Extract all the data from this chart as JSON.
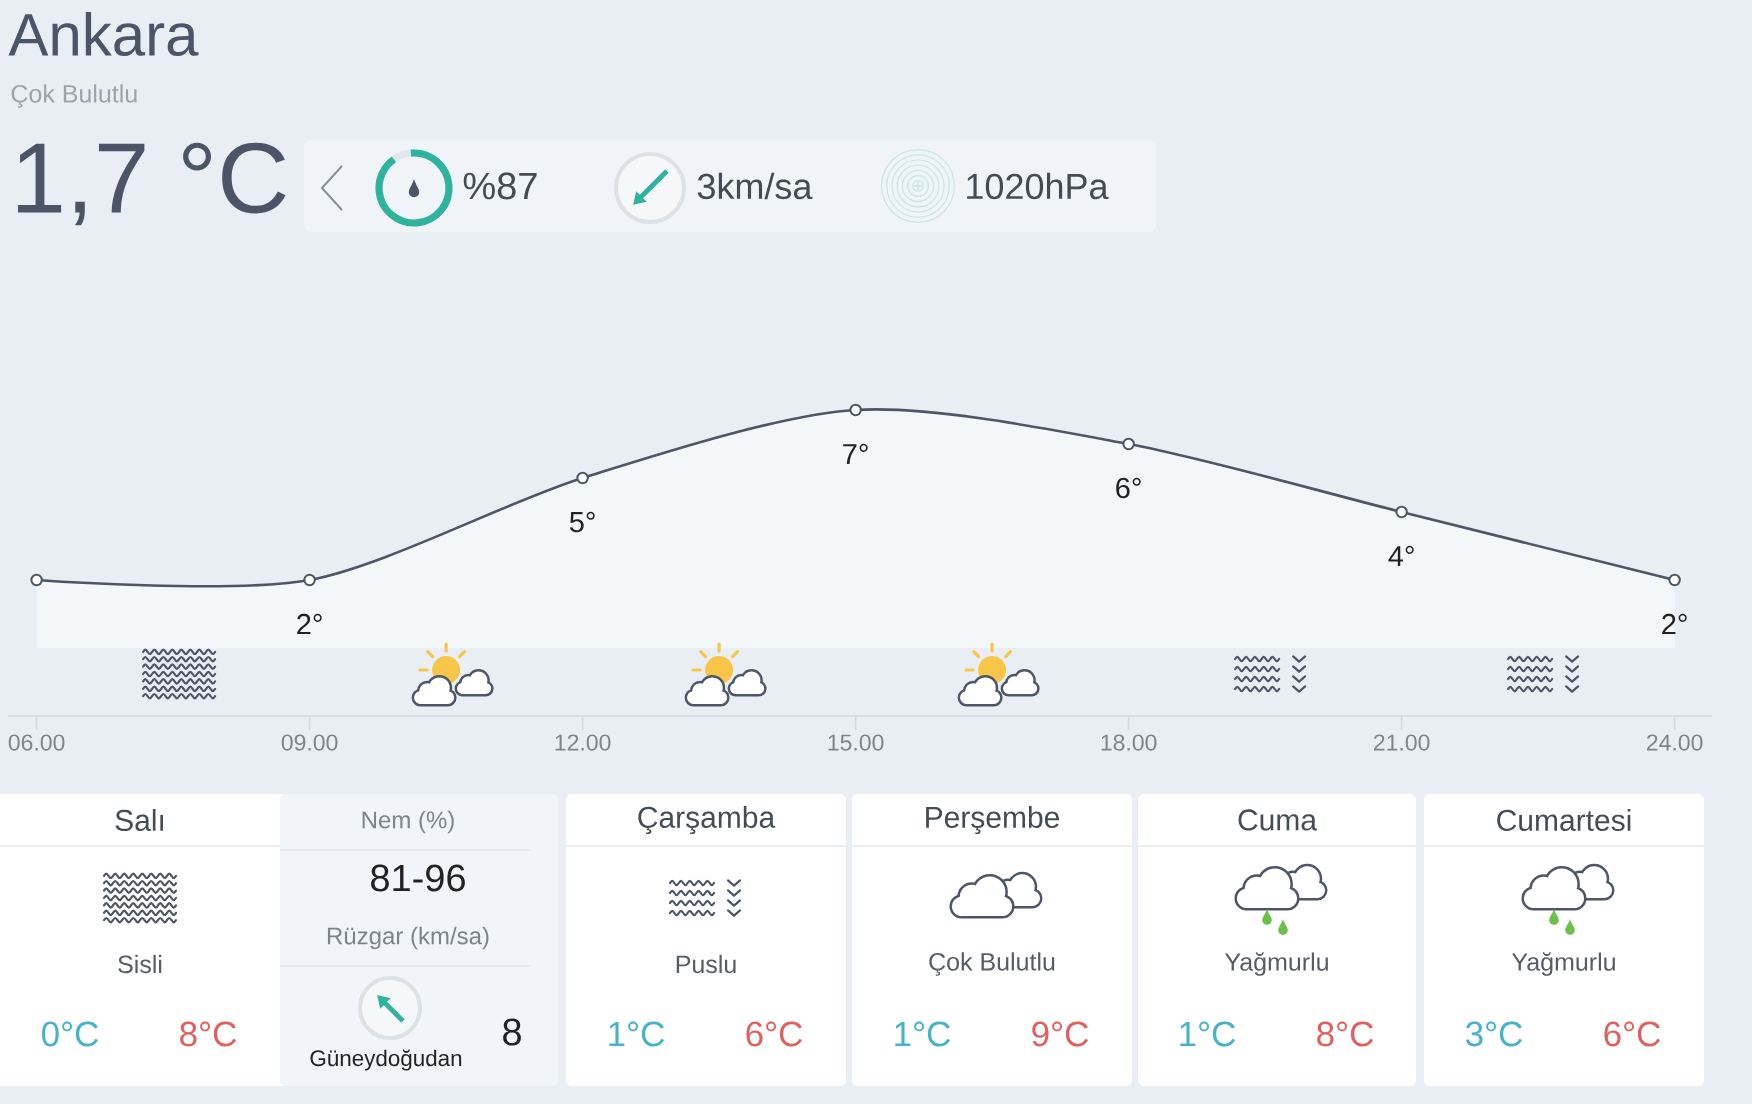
{
  "chart_data": [
    {
      "type": "other",
      "title": "Ankara",
      "subtitle": "Çok Bulutlu",
      "annotations": [
        "1,7 °C",
        "%87",
        "3km/sa",
        "1020hPa"
      ]
    },
    {
      "type": "area",
      "categories": [
        "06.00",
        "09.00",
        "12.00",
        "15.00",
        "18.00",
        "21.00",
        "24.00"
      ],
      "values": [
        2,
        2,
        5,
        7,
        6,
        4,
        2
      ],
      "value_labels": [
        null,
        "2°",
        "5°",
        "7°",
        "6°",
        "4°",
        "2°"
      ],
      "color": "#4d5566",
      "marker": "circle"
    },
    {
      "type": "other",
      "title": "Salı",
      "annotations": [
        "Sisli",
        "0°C",
        "8°C"
      ]
    },
    {
      "type": "other",
      "annotations": [
        "Nem (%)",
        "81-96",
        "Rüzgar (km/sa)",
        "Güneydoğudan",
        "8"
      ]
    },
    {
      "type": "other",
      "title": "Çarşamba",
      "annotations": [
        "Puslu",
        "1°C",
        "6°C"
      ]
    },
    {
      "type": "other",
      "title": "Perşembe",
      "annotations": [
        "Çok Bulutlu",
        "1°C",
        "9°C"
      ]
    },
    {
      "type": "other",
      "title": "Cuma",
      "annotations": [
        "Yağmurlu",
        "1°C",
        "8°C"
      ]
    },
    {
      "type": "other",
      "title": "Cumartesi",
      "annotations": [
        "Yağmurlu",
        "3°C",
        "6°C"
      ]
    }
  ]
}
